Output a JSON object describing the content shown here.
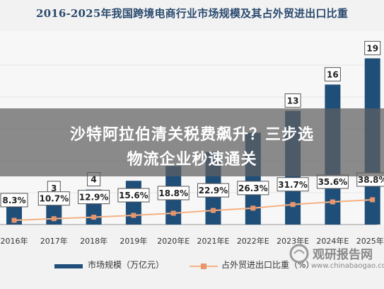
{
  "page": {
    "title": "2016-2025年我国跨境电商行业市场规模及其占外贸进出口比重",
    "overlay_line1": "沙特阿拉伯清关税费飙升？三步选",
    "overlay_line2": "物流企业秒速通关",
    "watermark_cn": "观研报告网",
    "watermark_en": "www.chinabaogao.com"
  },
  "chart_data": {
    "type": "bar",
    "title": "2016-2025年我国跨境电商行业市场规模及其占外贸进出口比重",
    "categories": [
      "2016年",
      "2017年",
      "2018年",
      "2019年",
      "2020年E",
      "2021年E",
      "2022年E",
      "2023年E",
      "2024年E",
      "2025年E"
    ],
    "series": [
      {
        "name": "市场规模（万亿元）",
        "type": "bar",
        "values": [
          2.2,
          3,
          4,
          5,
          6.7,
          8.3,
          10.5,
          13,
          16,
          19
        ],
        "labels": [
          "",
          "3",
          "4",
          "",
          "",
          "",
          "",
          "13",
          "16",
          "19"
        ]
      },
      {
        "name": "占外贸进出口比重（%）",
        "type": "line",
        "values": [
          8.3,
          10.7,
          12.9,
          15.6,
          18.8,
          22.9,
          26.3,
          31.7,
          35.6,
          38.8
        ],
        "labels": [
          "8.3%",
          "10.7%",
          "12.9%",
          "15.6%",
          "18.8%",
          "22.9%",
          "26.3%",
          "31.7%",
          "35.6%",
          "38.8%"
        ]
      }
    ],
    "colors": {
      "bar": "#1f4e79",
      "line": "#f4b183",
      "marker": "#e8956b",
      "title": "#2b4a6e"
    },
    "legend_position": "bottom",
    "grid": true
  }
}
